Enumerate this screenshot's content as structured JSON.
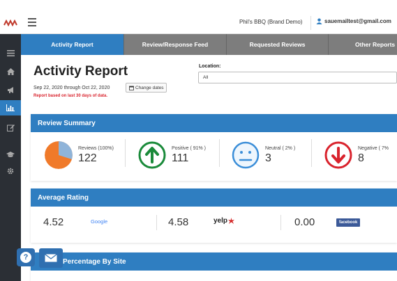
{
  "topbar": {
    "brand": "Phil's BBQ (Brand Demo)",
    "user_email": "sauemailtest@gmail.com"
  },
  "tabs": [
    "Activity Report",
    "Review/Response Feed",
    "Requested Reviews",
    "Other Reports"
  ],
  "header": {
    "title": "Activity Report",
    "date_range": "Sep 22, 2020 through Oct 22, 2020",
    "change_dates_label": "Change dates",
    "note": "Report based on last 30 days of data.",
    "location_label": "Location:",
    "location_value": "All"
  },
  "review_summary": {
    "title": "Review Summary",
    "metrics": [
      {
        "label": "Reviews (100%)",
        "value": "122",
        "icon": "pie-chart-icon"
      },
      {
        "label": "Positive ( 91% )",
        "value": "111",
        "icon": "up-arrow-icon"
      },
      {
        "label": "Neutral ( 2% )",
        "value": "3",
        "icon": "neutral-face-icon"
      },
      {
        "label": "Negative ( 7%",
        "value": "8",
        "icon": "down-arrow-icon"
      }
    ]
  },
  "average_rating": {
    "title": "Average Rating",
    "sites": [
      {
        "rating": "4.52",
        "site": "Google"
      },
      {
        "rating": "4.58",
        "site": "yelp"
      },
      {
        "rating": "0.00",
        "site": "facebook"
      }
    ]
  },
  "percentage_by_site": {
    "title": "Percentage By Site"
  },
  "colors": {
    "primary": "#2f7ec1",
    "sidebar": "#2b2f35",
    "positive": "#1a8a3a",
    "neutral": "#3b8ed8",
    "negative": "#d9232d",
    "note": "#d9232d"
  }
}
